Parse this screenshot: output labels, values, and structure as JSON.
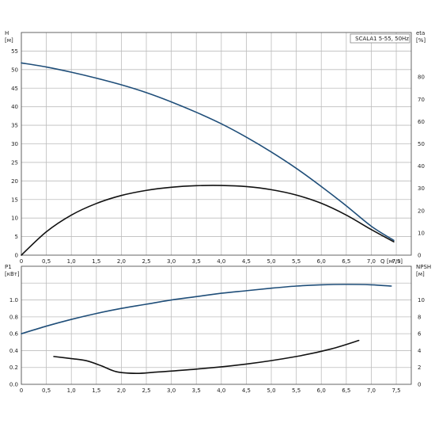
{
  "chart_data": [
    {
      "type": "line",
      "title": "SCALA1 5-55, 50Hz",
      "x_label": "Q",
      "x_unit": "[м³/ч]",
      "x_ticks": [
        "0",
        "0,5",
        "1,0",
        "1,5",
        "2,0",
        "2,5",
        "3,0",
        "3,5",
        "4,0",
        "4,5",
        "5,0",
        "5,5",
        "6,0",
        "6,5",
        "7,0",
        "7,5"
      ],
      "xlim": [
        0,
        7.8
      ],
      "grid": true,
      "y_left": {
        "label": "H",
        "unit": "[м]",
        "ylim": [
          0,
          60
        ],
        "ticks": [
          "0",
          "5",
          "10",
          "15",
          "20",
          "25",
          "30",
          "35",
          "40",
          "45",
          "50",
          "55"
        ]
      },
      "y_right": {
        "label": "eta",
        "unit": "[%]",
        "ylim": [
          0,
          100
        ],
        "ticks": [
          "0",
          "10",
          "20",
          "30",
          "40",
          "50",
          "60",
          "70",
          "80"
        ]
      },
      "series": [
        {
          "axis": "left",
          "color": "#1f4e79",
          "x": [
            0,
            0.5,
            1.0,
            1.5,
            2.0,
            2.5,
            3.0,
            3.5,
            4.0,
            4.5,
            5.0,
            5.5,
            6.0,
            6.5,
            7.0,
            7.45
          ],
          "y": [
            51.8,
            50.7,
            49.3,
            47.7,
            45.9,
            43.8,
            41.3,
            38.5,
            35.4,
            31.8,
            27.8,
            23.4,
            18.5,
            13.3,
            7.8,
            4.0
          ]
        },
        {
          "axis": "right",
          "color": "#111111",
          "x": [
            0,
            0.5,
            1.0,
            1.5,
            2.0,
            2.5,
            3.0,
            3.5,
            4.0,
            4.5,
            5.0,
            5.5,
            6.0,
            6.5,
            7.0,
            7.45
          ],
          "y": [
            0,
            10.5,
            18.0,
            23.2,
            26.8,
            29.1,
            30.5,
            31.2,
            31.3,
            30.8,
            29.4,
            27.0,
            23.3,
            18.0,
            11.5,
            6.0
          ]
        }
      ]
    },
    {
      "type": "line",
      "x_ticks": [
        "0",
        "0,5",
        "1,0",
        "1,5",
        "2,0",
        "2,5",
        "3,0",
        "3,5",
        "4,0",
        "4,5",
        "5,0",
        "5,5",
        "6,0",
        "6,5",
        "7,0",
        "7,5"
      ],
      "xlim": [
        0,
        7.8
      ],
      "grid": true,
      "y_left": {
        "label": "P1",
        "unit": "[кВт]",
        "ylim": [
          0,
          1.4
        ],
        "ticks": [
          "0.0",
          "0.2",
          "0.4",
          "0.6",
          "0.8",
          "1.0"
        ],
        "tick_values": [
          0,
          0.2,
          0.4,
          0.6,
          0.8,
          1.0
        ]
      },
      "y_right": {
        "label": "NPSH",
        "unit": "[м]",
        "ylim": [
          0,
          14
        ],
        "ticks": [
          "0",
          "2",
          "4",
          "6",
          "8",
          "10"
        ],
        "tick_values": [
          0,
          2,
          4,
          6,
          8,
          10
        ]
      },
      "series": [
        {
          "axis": "left",
          "color": "#1f4e79",
          "x": [
            0,
            0.5,
            1.0,
            1.5,
            2.0,
            2.5,
            3.0,
            3.5,
            4.0,
            4.5,
            5.0,
            5.5,
            6.0,
            6.5,
            7.0,
            7.4
          ],
          "y": [
            0.6,
            0.69,
            0.77,
            0.84,
            0.9,
            0.95,
            1.0,
            1.04,
            1.08,
            1.11,
            1.14,
            1.165,
            1.18,
            1.185,
            1.18,
            1.165
          ]
        },
        {
          "axis": "right",
          "color": "#111111",
          "x": [
            0.65,
            1.0,
            1.3,
            1.6,
            1.9,
            2.3,
            2.7,
            3.5,
            4.5,
            5.5,
            6.2,
            6.75
          ],
          "y": [
            3.3,
            3.05,
            2.8,
            2.2,
            1.5,
            1.3,
            1.45,
            1.8,
            2.4,
            3.3,
            4.2,
            5.2
          ]
        }
      ]
    }
  ]
}
